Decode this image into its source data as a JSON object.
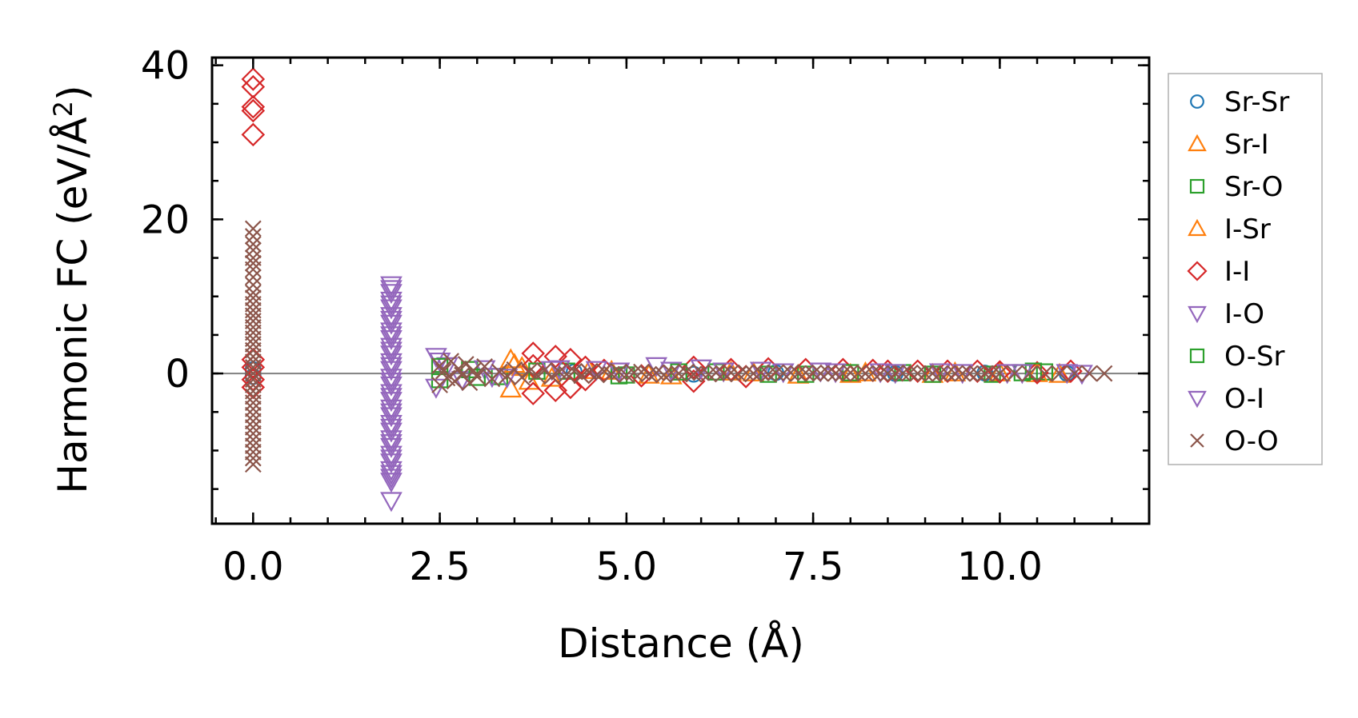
{
  "chart_data": {
    "type": "scatter",
    "xlabel": "Distance (Å)",
    "ylabel_main": "Harmonic FC (eV/Å",
    "ylabel_sup": "2",
    "ylabel_tail": ")",
    "xlim": [
      -0.55,
      12.0
    ],
    "ylim": [
      -19.5,
      41.0
    ],
    "x_ticks": [
      0.0,
      2.5,
      5.0,
      7.5,
      10.0
    ],
    "x_tick_labels": [
      "0.0",
      "2.5",
      "5.0",
      "7.5",
      "10.0"
    ],
    "x_minor_step": 0.5,
    "y_ticks": [
      0,
      20,
      40
    ],
    "y_tick_labels": [
      "0",
      "20",
      "40"
    ],
    "y_minor_step": 5,
    "zero_line": true,
    "legend_position": "outside-right",
    "series": [
      {
        "name": "Sr-Sr",
        "marker": "circle",
        "color": "#1f77b4",
        "points": [
          [
            0,
            0.5
          ],
          [
            0,
            -0.4
          ],
          [
            4.3,
            0.2
          ],
          [
            5.9,
            -0.1
          ],
          [
            7.0,
            0.1
          ],
          [
            8.6,
            0.0
          ],
          [
            9.8,
            0.05
          ],
          [
            10.9,
            0.0
          ]
        ]
      },
      {
        "name": "Sr-I",
        "marker": "triangle-up",
        "color": "#ff7f0e",
        "points": [
          [
            3.45,
            1.8
          ],
          [
            3.45,
            -2.0
          ],
          [
            3.6,
            0.8
          ],
          [
            4.0,
            -0.6
          ],
          [
            4.8,
            0.3
          ],
          [
            5.6,
            -0.3
          ],
          [
            6.4,
            0.2
          ],
          [
            7.3,
            -0.2
          ],
          [
            8.2,
            0.1
          ],
          [
            9.1,
            -0.1
          ],
          [
            10.0,
            0.1
          ],
          [
            10.8,
            -0.1
          ]
        ]
      },
      {
        "name": "Sr-O",
        "marker": "square",
        "color": "#2ca02c",
        "points": [
          [
            2.5,
            -0.8
          ],
          [
            2.9,
            0.5
          ],
          [
            3.3,
            -0.4
          ],
          [
            4.2,
            0.3
          ],
          [
            5.0,
            -0.2
          ],
          [
            6.2,
            0.2
          ],
          [
            7.4,
            -0.1
          ],
          [
            8.7,
            0.1
          ],
          [
            9.9,
            -0.1
          ],
          [
            10.6,
            0.2
          ]
        ]
      },
      {
        "name": "I-Sr",
        "marker": "triangle-up",
        "color": "#ff7f0e",
        "points": [
          [
            3.5,
            1.2
          ],
          [
            3.7,
            -1.0
          ],
          [
            4.5,
            0.4
          ],
          [
            5.3,
            -0.2
          ],
          [
            6.7,
            0.1
          ],
          [
            8.0,
            -0.1
          ],
          [
            9.4,
            0.1
          ],
          [
            10.5,
            0.0
          ]
        ]
      },
      {
        "name": "I-I",
        "marker": "diamond",
        "color": "#d62728",
        "points": [
          [
            0,
            38.2
          ],
          [
            0,
            37.2
          ],
          [
            0,
            34.6
          ],
          [
            0,
            34.1
          ],
          [
            0,
            31.0
          ],
          [
            0,
            1.8
          ],
          [
            0,
            0.8
          ],
          [
            0,
            -0.8
          ],
          [
            0,
            -1.8
          ],
          [
            3.75,
            2.6
          ],
          [
            3.75,
            -2.6
          ],
          [
            3.75,
            1.0
          ],
          [
            4.05,
            2.2
          ],
          [
            4.05,
            -2.2
          ],
          [
            4.25,
            1.8
          ],
          [
            4.25,
            -1.8
          ],
          [
            4.45,
            0.8
          ],
          [
            4.45,
            -0.8
          ],
          [
            4.7,
            0.4
          ],
          [
            5.2,
            -0.3
          ],
          [
            5.9,
            0.8
          ],
          [
            5.9,
            -1.0
          ],
          [
            6.4,
            0.5
          ],
          [
            6.6,
            -0.4
          ],
          [
            6.9,
            0.6
          ],
          [
            7.4,
            0.5
          ],
          [
            7.9,
            0.5
          ],
          [
            8.3,
            0.4
          ],
          [
            8.5,
            0.3
          ],
          [
            8.9,
            0.3
          ],
          [
            9.3,
            0.3
          ],
          [
            9.7,
            0.3
          ],
          [
            10.0,
            0.2
          ],
          [
            10.5,
            0.1
          ],
          [
            10.95,
            0.3
          ]
        ]
      },
      {
        "name": "I-O",
        "marker": "triangle-down",
        "color": "#9467bd",
        "points": [
          [
            1.85,
            11.5
          ],
          [
            1.85,
            10.5
          ],
          [
            1.85,
            9.5
          ],
          [
            1.85,
            8.5
          ],
          [
            1.85,
            7.5
          ],
          [
            1.85,
            6.5
          ],
          [
            1.85,
            5.5
          ],
          [
            1.85,
            4.5
          ],
          [
            1.85,
            3.5
          ],
          [
            1.85,
            2.5
          ],
          [
            1.85,
            1.5
          ],
          [
            1.85,
            0.5
          ],
          [
            1.85,
            -0.5
          ],
          [
            1.85,
            -1.5
          ],
          [
            1.85,
            -2.5
          ],
          [
            1.85,
            -3.5
          ],
          [
            1.85,
            -4.5
          ],
          [
            1.85,
            -5.5
          ],
          [
            1.85,
            -6.5
          ],
          [
            1.85,
            -7.5
          ],
          [
            1.85,
            -8.5
          ],
          [
            1.85,
            -9.5
          ],
          [
            1.85,
            -10.5
          ],
          [
            1.85,
            -11.5
          ],
          [
            1.85,
            -12.5
          ],
          [
            1.85,
            -13.5
          ],
          [
            1.85,
            -16.5
          ],
          [
            2.45,
            2.2
          ],
          [
            2.45,
            -1.8
          ],
          [
            2.6,
            1.0
          ],
          [
            2.8,
            -0.8
          ],
          [
            3.1,
            0.6
          ],
          [
            3.4,
            -0.5
          ],
          [
            4.1,
            0.6
          ],
          [
            4.6,
            0.5
          ],
          [
            5.4,
            1.0
          ],
          [
            6.0,
            0.7
          ],
          [
            6.8,
            0.4
          ],
          [
            7.6,
            0.3
          ],
          [
            8.4,
            0.2
          ],
          [
            9.2,
            0.2
          ],
          [
            10.1,
            0.1
          ],
          [
            10.9,
            0.1
          ]
        ]
      },
      {
        "name": "O-Sr",
        "marker": "square",
        "color": "#2ca02c",
        "points": [
          [
            2.5,
            0.9
          ],
          [
            3.0,
            -0.5
          ],
          [
            3.8,
            0.3
          ],
          [
            4.9,
            -0.3
          ],
          [
            5.7,
            0.2
          ],
          [
            6.9,
            -0.1
          ],
          [
            8.0,
            0.1
          ],
          [
            9.1,
            -0.1
          ],
          [
            10.3,
            0.1
          ],
          [
            10.45,
            0.3
          ]
        ]
      },
      {
        "name": "O-I",
        "marker": "triangle-down",
        "color": "#9467bd",
        "points": [
          [
            1.85,
            11.0
          ],
          [
            1.85,
            9.0
          ],
          [
            1.85,
            7.0
          ],
          [
            1.85,
            5.0
          ],
          [
            1.85,
            3.0
          ],
          [
            1.85,
            1.0
          ],
          [
            1.85,
            -1.0
          ],
          [
            1.85,
            -3.0
          ],
          [
            1.85,
            -5.0
          ],
          [
            1.85,
            -7.0
          ],
          [
            1.85,
            -9.0
          ],
          [
            1.85,
            -11.0
          ],
          [
            1.85,
            -13.0
          ],
          [
            1.85,
            -14.0
          ],
          [
            2.5,
            1.6
          ],
          [
            3.2,
            -0.4
          ],
          [
            4.0,
            0.5
          ],
          [
            4.9,
            0.3
          ],
          [
            5.6,
            0.4
          ],
          [
            6.3,
            0.3
          ],
          [
            7.1,
            0.2
          ],
          [
            7.8,
            0.2
          ],
          [
            8.6,
            0.1
          ],
          [
            9.5,
            0.1
          ],
          [
            10.3,
            0.1
          ],
          [
            11.1,
            0.0
          ]
        ]
      },
      {
        "name": "O-O",
        "marker": "x",
        "color": "#8c564b",
        "points": [
          [
            0,
            18.8
          ],
          [
            0,
            17.8
          ],
          [
            0,
            16.8
          ],
          [
            0,
            16.0
          ],
          [
            0,
            15.0
          ],
          [
            0,
            14.3
          ],
          [
            0,
            13.5
          ],
          [
            0,
            12.5
          ],
          [
            0,
            11.5
          ],
          [
            0,
            10.5
          ],
          [
            0,
            9.8
          ],
          [
            0,
            9.0
          ],
          [
            0,
            8.2
          ],
          [
            0,
            7.5
          ],
          [
            0,
            6.8
          ],
          [
            0,
            6.0
          ],
          [
            0,
            5.3
          ],
          [
            0,
            4.5
          ],
          [
            0,
            3.8
          ],
          [
            0,
            3.0
          ],
          [
            0,
            2.2
          ],
          [
            0,
            1.5
          ],
          [
            0,
            0.8
          ],
          [
            0,
            0.0
          ],
          [
            0,
            -0.8
          ],
          [
            0,
            -1.5
          ],
          [
            0,
            -2.3
          ],
          [
            0,
            -3.0
          ],
          [
            0,
            -3.8
          ],
          [
            0,
            -4.6
          ],
          [
            0,
            -5.4
          ],
          [
            0,
            -6.2
          ],
          [
            0,
            -7.0
          ],
          [
            0,
            -7.8
          ],
          [
            0,
            -8.6
          ],
          [
            0,
            -9.4
          ],
          [
            0,
            -10.2
          ],
          [
            0,
            -11.0
          ],
          [
            0,
            -11.8
          ],
          [
            2.5,
            1.0
          ],
          [
            2.5,
            -1.5
          ],
          [
            2.55,
            0.3
          ],
          [
            2.6,
            -0.6
          ],
          [
            2.65,
            1.6
          ],
          [
            2.7,
            -1.0
          ],
          [
            2.75,
            0.6
          ],
          [
            2.8,
            -0.2
          ],
          [
            2.85,
            1.2
          ],
          [
            2.9,
            -1.2
          ],
          [
            2.95,
            0.4
          ],
          [
            3.0,
            -0.4
          ],
          [
            3.1,
            0.9
          ],
          [
            3.2,
            -0.7
          ],
          [
            3.3,
            0.2
          ],
          [
            3.4,
            -0.3
          ],
          [
            3.5,
            0.5
          ],
          [
            3.6,
            -0.5
          ],
          [
            3.7,
            0.3
          ],
          [
            3.8,
            -0.2
          ],
          [
            3.9,
            0.4
          ],
          [
            4.0,
            -0.4
          ],
          [
            4.1,
            0.2
          ],
          [
            4.2,
            -0.1
          ],
          [
            4.3,
            0.3
          ],
          [
            4.4,
            -0.3
          ],
          [
            4.5,
            0.2
          ],
          [
            4.6,
            -0.2
          ],
          [
            4.7,
            0.3
          ],
          [
            4.8,
            -0.1
          ],
          [
            4.9,
            0.2
          ],
          [
            5.0,
            -0.2
          ],
          [
            5.1,
            0.1
          ],
          [
            5.2,
            0.2
          ],
          [
            5.3,
            -0.1
          ],
          [
            5.4,
            0.1
          ],
          [
            5.5,
            -0.2
          ],
          [
            5.6,
            0.1
          ],
          [
            5.7,
            0.0
          ],
          [
            5.8,
            0.2
          ],
          [
            5.9,
            -0.1
          ],
          [
            6.0,
            0.1
          ],
          [
            6.1,
            -0.1
          ],
          [
            6.2,
            0.1
          ],
          [
            6.3,
            0.0
          ],
          [
            6.4,
            0.1
          ],
          [
            6.5,
            -0.1
          ],
          [
            6.6,
            0.1
          ],
          [
            6.7,
            0.0
          ],
          [
            6.8,
            0.1
          ],
          [
            6.9,
            -0.1
          ],
          [
            7.0,
            0.1
          ],
          [
            7.1,
            0.0
          ],
          [
            7.2,
            0.1
          ],
          [
            7.3,
            0.0
          ],
          [
            7.4,
            0.1
          ],
          [
            7.5,
            0.0
          ],
          [
            7.6,
            0.0
          ],
          [
            7.7,
            0.1
          ],
          [
            7.8,
            0.0
          ],
          [
            7.9,
            0.0
          ],
          [
            8.0,
            0.1
          ],
          [
            8.1,
            0.0
          ],
          [
            8.2,
            0.0
          ],
          [
            8.3,
            0.1
          ],
          [
            8.4,
            0.0
          ],
          [
            8.5,
            0.0
          ],
          [
            8.6,
            0.0
          ],
          [
            8.7,
            0.0
          ],
          [
            8.8,
            0.1
          ],
          [
            8.9,
            0.0
          ],
          [
            9.0,
            0.0
          ],
          [
            9.1,
            0.0
          ],
          [
            9.2,
            0.0
          ],
          [
            9.3,
            0.0
          ],
          [
            9.4,
            0.0
          ],
          [
            9.5,
            0.0
          ],
          [
            9.6,
            0.0
          ],
          [
            9.7,
            0.0
          ],
          [
            9.8,
            0.0
          ],
          [
            9.9,
            0.0
          ],
          [
            10.0,
            0.0
          ],
          [
            10.2,
            0.0
          ],
          [
            10.4,
            0.0
          ],
          [
            10.6,
            0.0
          ],
          [
            10.8,
            0.0
          ],
          [
            11.0,
            0.0
          ],
          [
            11.2,
            0.0
          ],
          [
            11.4,
            0.0
          ]
        ]
      }
    ]
  }
}
